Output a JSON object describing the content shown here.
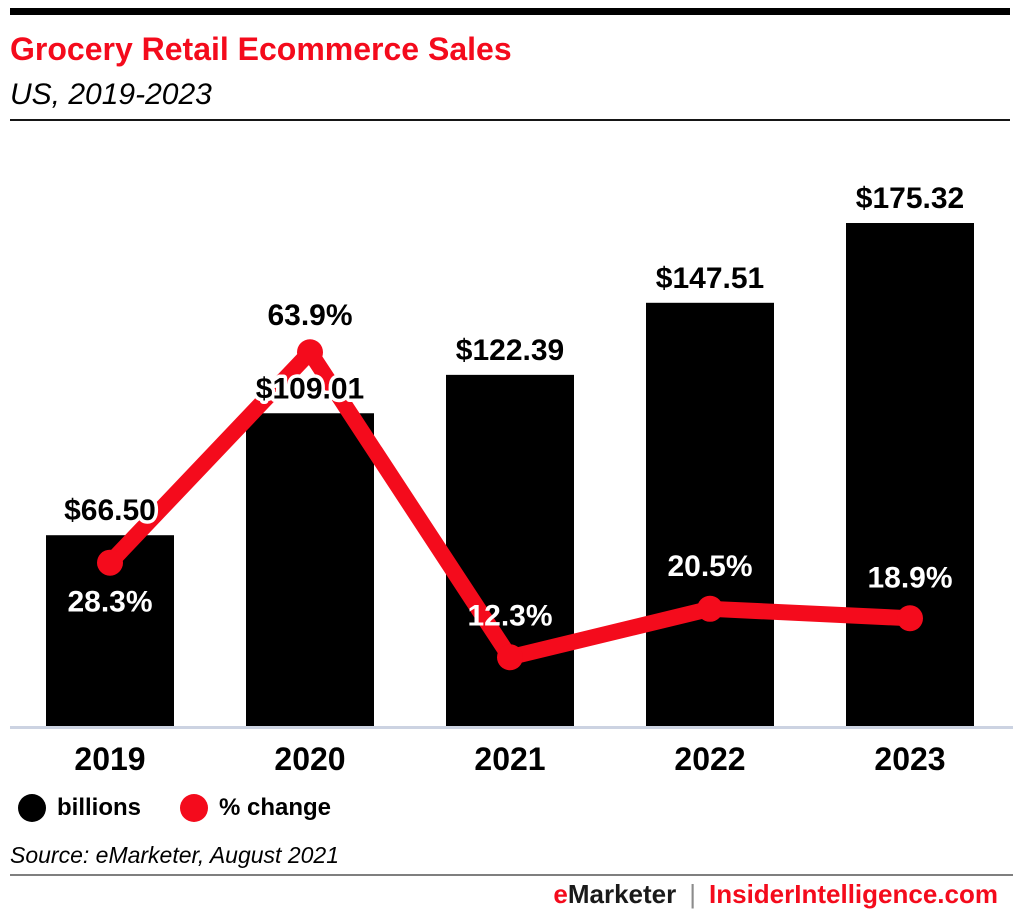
{
  "header": {
    "title": "Grocery Retail Ecommerce Sales",
    "subtitle": "US, 2019-2023"
  },
  "chart_data": {
    "type": "bar",
    "title": "Grocery Retail Ecommerce Sales",
    "subtitle": "US, 2019-2023",
    "categories": [
      "2019",
      "2020",
      "2021",
      "2022",
      "2023"
    ],
    "series": [
      {
        "name": "billions",
        "type": "bar",
        "unit": "US$ billions",
        "values": [
          66.5,
          109.01,
          122.39,
          147.51,
          175.32
        ],
        "labels": [
          "$66.50",
          "$109.01",
          "$122.39",
          "$147.51",
          "$175.32"
        ],
        "color": "#000000"
      },
      {
        "name": "% change",
        "type": "line",
        "unit": "percent",
        "values": [
          28.3,
          63.9,
          12.3,
          20.5,
          18.9
        ],
        "labels": [
          "28.3%",
          "63.9%",
          "12.3%",
          "20.5%",
          "18.9%"
        ],
        "color": "#F40B1C"
      }
    ],
    "xlabel": "",
    "ylabel": "",
    "ylim_bars": [
      0,
      183
    ],
    "ylim_pct": [
      0,
      67
    ],
    "grid": false,
    "value_axes_hidden": true,
    "legend_position": "bottom-left"
  },
  "legend": [
    {
      "label": "billions",
      "color": "#000000"
    },
    {
      "label": "% change",
      "color": "#F40B1C"
    }
  ],
  "source_note": "Source: eMarketer, August 2021",
  "footer": {
    "brand_prefix": "e",
    "brand_rest": "Marketer",
    "separator": "|",
    "site": "InsiderIntelligence.com"
  },
  "colors": {
    "accent_red": "#F40B1C",
    "bar_black": "#000000",
    "axis_line": "#CCD3E2",
    "header_divider": "#161616",
    "footer_divider": "#7F7F7F",
    "separator_gray": "#8C8C8C"
  }
}
